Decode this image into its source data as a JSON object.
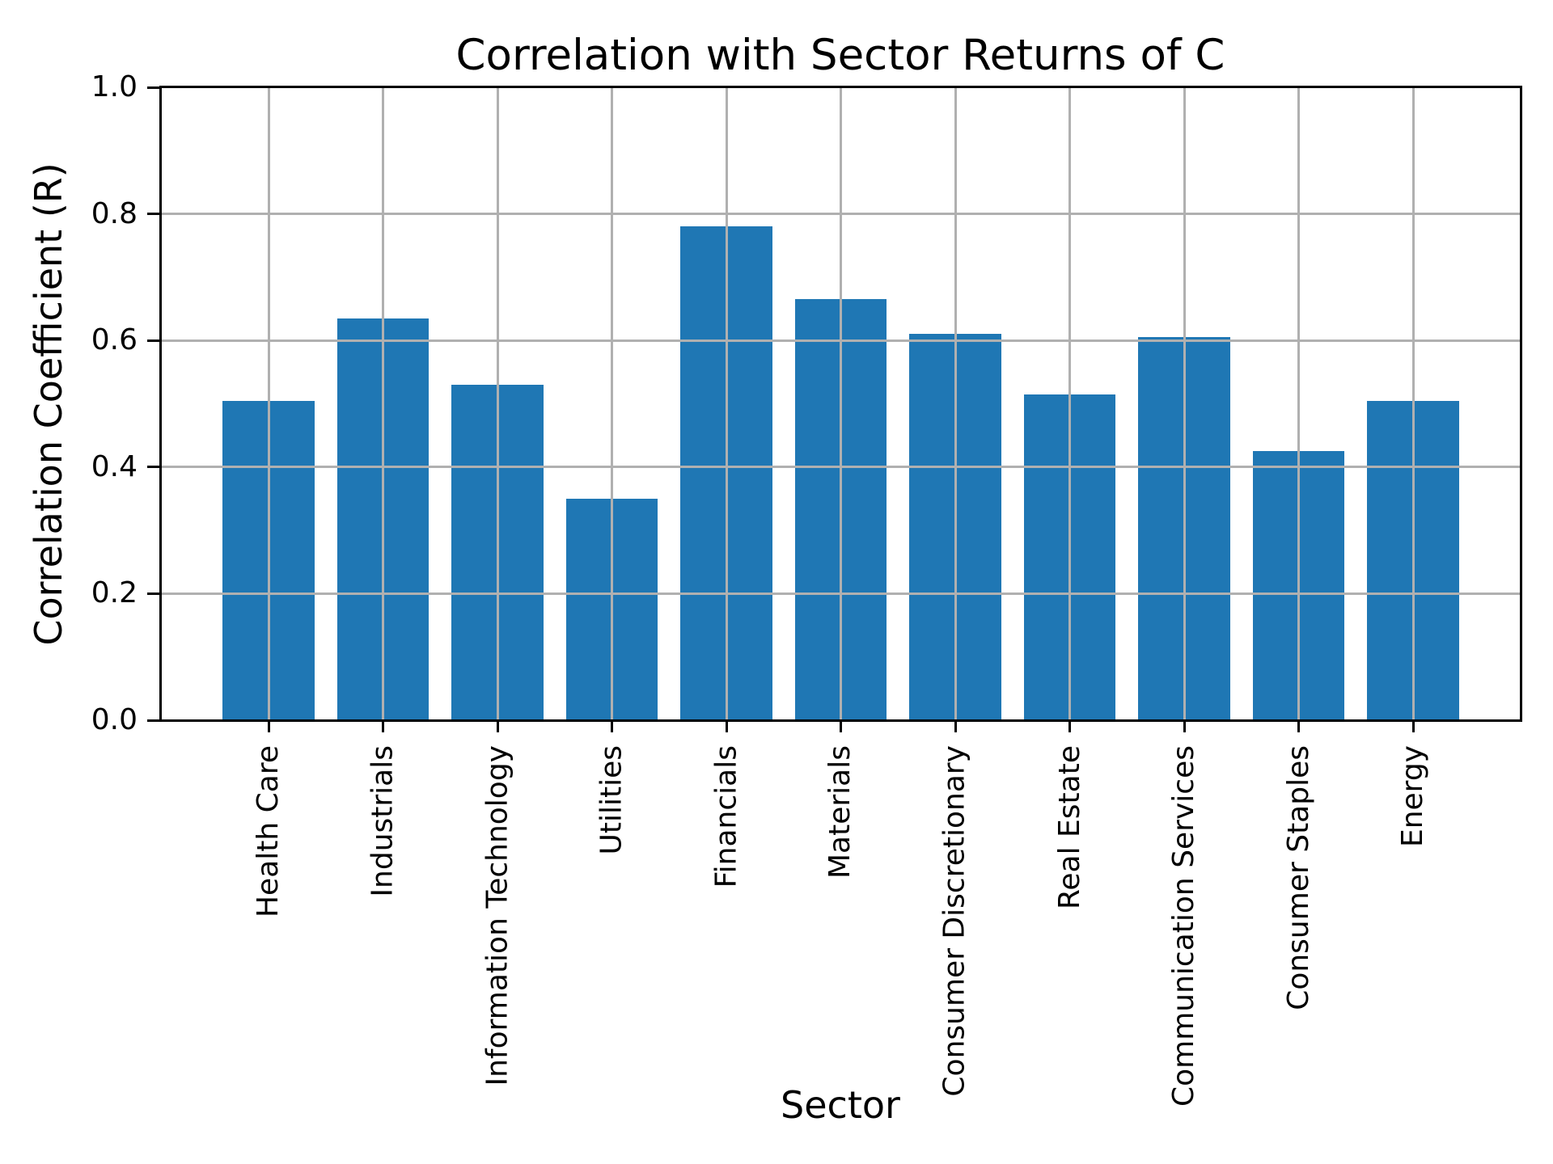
{
  "chart_data": {
    "type": "bar",
    "title": "Correlation with Sector Returns of C",
    "xlabel": "Sector",
    "ylabel": "Correlation Coefficient (R)",
    "categories": [
      "Health Care",
      "Industrials",
      "Information Technology",
      "Utilities",
      "Financials",
      "Materials",
      "Consumer Discretionary",
      "Real Estate",
      "Communication Services",
      "Consumer Staples",
      "Energy"
    ],
    "values": [
      0.505,
      0.635,
      0.53,
      0.35,
      0.78,
      0.665,
      0.61,
      0.515,
      0.605,
      0.425,
      0.505
    ],
    "ylim": [
      0.0,
      1.0
    ],
    "ytick_labels": [
      "0.0",
      "0.2",
      "0.4",
      "0.6",
      "0.8",
      "1.0"
    ],
    "ytick_values": [
      0.0,
      0.2,
      0.4,
      0.6,
      0.8,
      1.0
    ],
    "grid": true,
    "legend": null,
    "colors": {
      "bar": "#1f77b4",
      "grid": "#b0b0b0",
      "axis": "#000000",
      "text": "#000000",
      "background": "#ffffff"
    }
  }
}
